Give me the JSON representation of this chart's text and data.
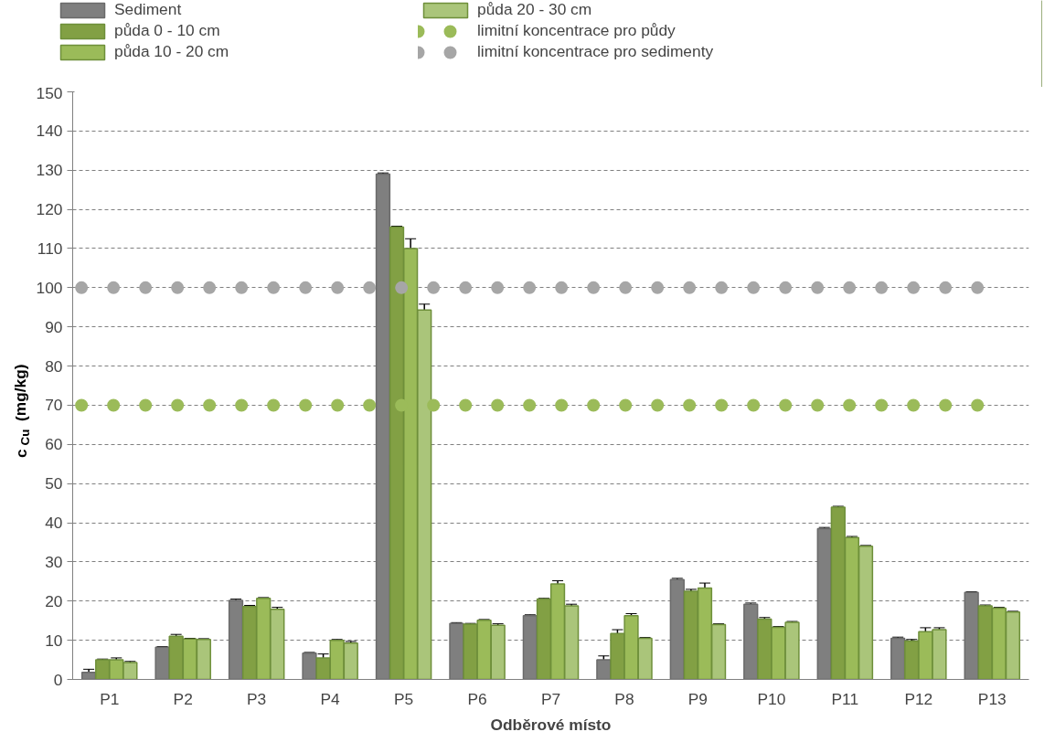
{
  "chart_data": {
    "type": "bar",
    "xlabel": "Odběrové místo",
    "ylabel": "c$_{Cu}$ (mg/kg)",
    "categories": [
      "P1",
      "P2",
      "P3",
      "P4",
      "P5",
      "P6",
      "P7",
      "P8",
      "P9",
      "P10",
      "P11",
      "P12",
      "P13"
    ],
    "series": [
      {
        "name": "Sediment",
        "color": "#7f7f7f",
        "values": [
          1.8,
          8.2,
          20.2,
          6.7,
          129,
          14.3,
          16.3,
          5,
          25.5,
          19.2,
          38.5,
          10.5,
          22.2
        ],
        "errors": [
          0.8,
          0.2,
          0.3,
          0.2,
          0.3,
          0.2,
          0.2,
          1,
          0.3,
          0.3,
          0.3,
          0.3,
          0.2
        ]
      },
      {
        "name": "půda 0 - 10 cm",
        "color": "#82a044",
        "values": [
          5,
          11,
          18.6,
          5.5,
          115.5,
          14.1,
          20.5,
          11.7,
          22.5,
          15.4,
          44,
          9.8,
          18.8
        ],
        "errors": [
          0.2,
          0.5,
          0.3,
          1,
          0.2,
          0.2,
          0.2,
          1,
          0.5,
          0.4,
          0.2,
          0.4,
          0.2
        ]
      },
      {
        "name": "půda 10 - 20 cm",
        "color": "#9bbb59",
        "values": [
          5,
          10.3,
          20.7,
          10,
          110,
          15.1,
          24.4,
          16.3,
          23.3,
          13.3,
          36.2,
          12.2,
          18.2
        ],
        "errors": [
          0.5,
          0.2,
          0.2,
          0.2,
          2.5,
          0.2,
          0.8,
          0.5,
          1.3,
          0.2,
          0.3,
          1,
          0.2
        ]
      },
      {
        "name": "půda 20 - 30 cm",
        "color": "#aac57a",
        "values": [
          4.3,
          10.2,
          17.9,
          9.3,
          94.3,
          13.8,
          18.8,
          10.5,
          14,
          14.6,
          34,
          12.7,
          17.2
        ],
        "errors": [
          0.3,
          0.2,
          0.5,
          0.4,
          1.5,
          0.4,
          0.4,
          0.2,
          0.2,
          0.2,
          0.2,
          0.5,
          0.2
        ]
      }
    ],
    "ref_lines": [
      {
        "axis": "y",
        "value": 70,
        "label": "limitní koncentrace pro půdy",
        "color": "#9bbb59",
        "line_style": "dotted"
      },
      {
        "axis": "y",
        "value": 100,
        "label": "limitní koncentrace pro sedimenty",
        "color": "#a6a6a6",
        "line_style": "dotted"
      }
    ],
    "ylim": [
      0,
      150
    ],
    "yticks": [
      0,
      10,
      20,
      30,
      40,
      50,
      60,
      70,
      80,
      90,
      100,
      110,
      120,
      130,
      140,
      150
    ],
    "grid": "y",
    "legend": "top"
  }
}
